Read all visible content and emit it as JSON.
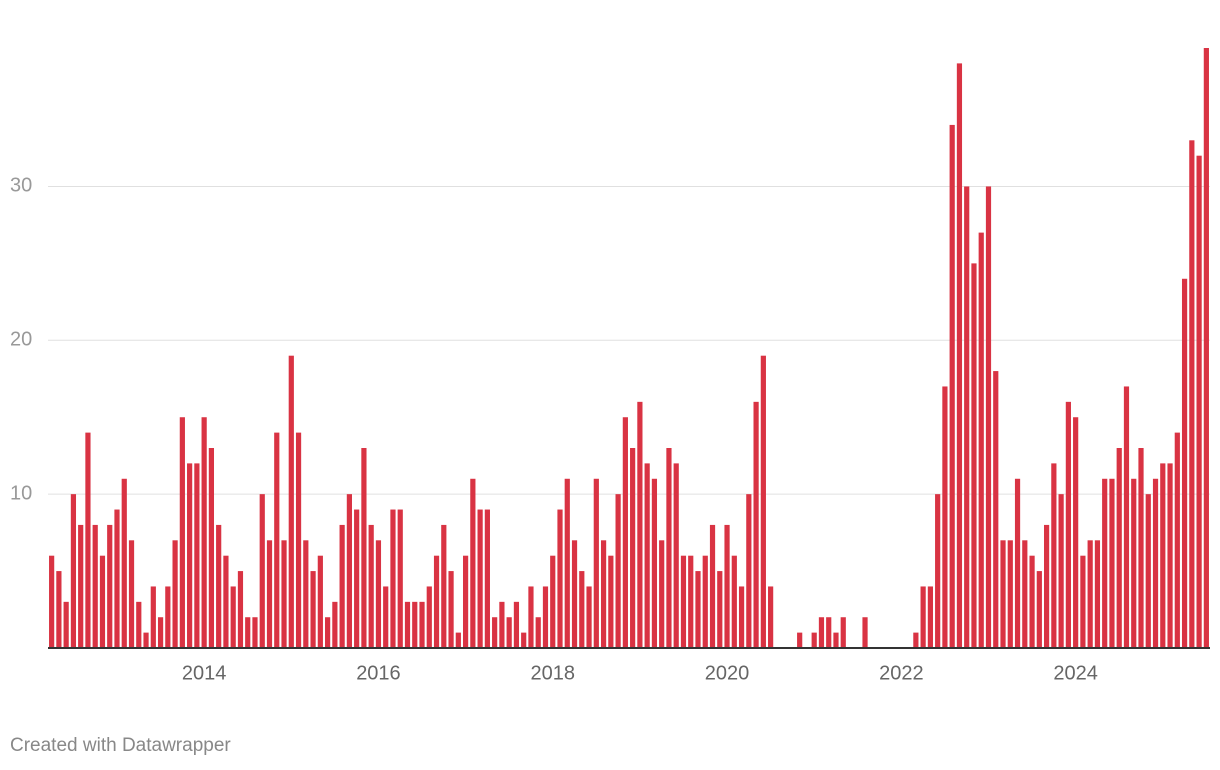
{
  "chart_data": {
    "type": "bar",
    "categories": [
      null,
      null,
      null,
      null,
      null,
      null,
      null,
      null,
      null,
      null,
      null,
      null,
      null,
      null,
      null,
      null,
      null,
      null,
      null,
      null,
      null,
      "2014",
      null,
      null,
      null,
      null,
      null,
      null,
      null,
      null,
      null,
      null,
      null,
      null,
      null,
      null,
      null,
      null,
      null,
      null,
      null,
      null,
      null,
      null,
      null,
      "2016",
      null,
      null,
      null,
      null,
      null,
      null,
      null,
      null,
      null,
      null,
      null,
      null,
      null,
      null,
      null,
      null,
      null,
      null,
      null,
      null,
      null,
      null,
      null,
      "2018",
      null,
      null,
      null,
      null,
      null,
      null,
      null,
      null,
      null,
      null,
      null,
      null,
      null,
      null,
      null,
      null,
      null,
      null,
      null,
      null,
      null,
      null,
      null,
      "2020",
      null,
      null,
      null,
      null,
      null,
      null,
      null,
      null,
      null,
      null,
      null,
      null,
      null,
      null,
      null,
      null,
      null,
      null,
      null,
      null,
      null,
      null,
      null,
      "2022",
      null,
      null,
      null,
      null,
      null,
      null,
      null,
      null,
      null,
      null,
      null,
      null,
      null,
      null,
      null,
      null,
      null,
      null,
      null,
      null,
      null,
      null,
      null,
      "2024",
      null,
      null,
      null,
      null,
      null,
      null,
      null,
      null,
      null,
      null,
      null,
      null,
      null,
      null,
      null,
      null,
      null,
      null
    ],
    "values": [
      6,
      5,
      3,
      10,
      8,
      14,
      8,
      6,
      8,
      9,
      11,
      7,
      3,
      1,
      4,
      2,
      4,
      7,
      15,
      12,
      12,
      15,
      13,
      8,
      6,
      4,
      5,
      2,
      2,
      10,
      7,
      14,
      7,
      19,
      14,
      7,
      5,
      6,
      2,
      3,
      8,
      10,
      9,
      13,
      8,
      7,
      4,
      9,
      9,
      3,
      3,
      3,
      4,
      6,
      8,
      5,
      1,
      6,
      11,
      9,
      9,
      2,
      3,
      2,
      3,
      1,
      4,
      2,
      4,
      6,
      9,
      11,
      7,
      5,
      4,
      11,
      7,
      6,
      10,
      15,
      13,
      16,
      12,
      11,
      7,
      13,
      12,
      6,
      6,
      5,
      6,
      8,
      5,
      8,
      6,
      4,
      10,
      16,
      19,
      4,
      0,
      0,
      0,
      1,
      0,
      1,
      2,
      2,
      1,
      2,
      0,
      0,
      2,
      0,
      0,
      0,
      0,
      0,
      0,
      1,
      4,
      4,
      10,
      17,
      34,
      38,
      30,
      25,
      27,
      30,
      18,
      7,
      7,
      11,
      7,
      6,
      5,
      8,
      12,
      10,
      16,
      15,
      6,
      7,
      7,
      11,
      11,
      13,
      17,
      11,
      13,
      10,
      11,
      12,
      12,
      14,
      24,
      33,
      32,
      39
    ],
    "color": "#d93343",
    "ylim": [
      0,
      39
    ],
    "yticks": [
      10,
      20,
      30
    ],
    "grid": true,
    "credit": "Created with Datawrapper"
  }
}
